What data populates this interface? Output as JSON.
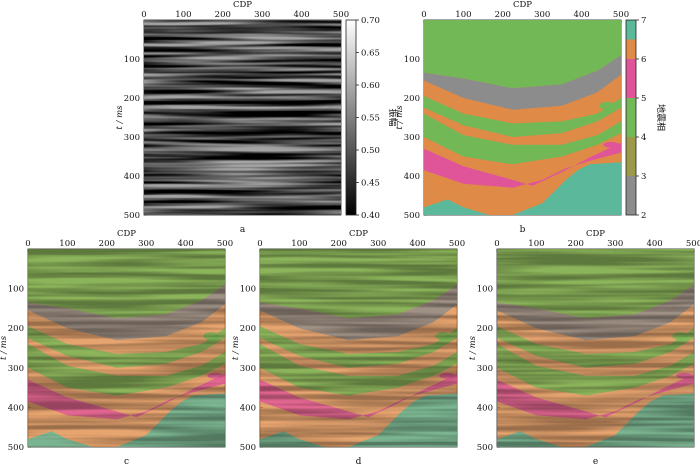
{
  "axis_titles": {
    "x": "CDP",
    "y": "t / ms"
  },
  "x_ticks": [
    "0",
    "100",
    "200",
    "300",
    "400",
    "500"
  ],
  "y_ticks": [
    "100",
    "200",
    "300",
    "400",
    "500"
  ],
  "colorbars": {
    "amplitude": {
      "label": "振幅",
      "ticks": [
        "0.70",
        "0.65",
        "0.60",
        "0.55",
        "0.50",
        "0.45",
        "0.40"
      ]
    },
    "facies": {
      "label": "地震相",
      "ticks": [
        "7",
        "6",
        "5",
        "4",
        "3",
        "2"
      ]
    }
  },
  "panels": [
    {
      "id": "a",
      "caption": "a",
      "kind": "amplitude"
    },
    {
      "id": "b",
      "caption": "b",
      "kind": "facies"
    },
    {
      "id": "c",
      "caption": "c",
      "kind": "overlay"
    },
    {
      "id": "d",
      "caption": "d",
      "kind": "overlay"
    },
    {
      "id": "e",
      "caption": "e",
      "kind": "overlay"
    }
  ],
  "facies_colors": {
    "2": "#8c8c8c",
    "3": "#9c9a48",
    "4": "#72b856",
    "5": "#e0559a",
    "6": "#df8a47",
    "7": "#5cb89a"
  }
}
